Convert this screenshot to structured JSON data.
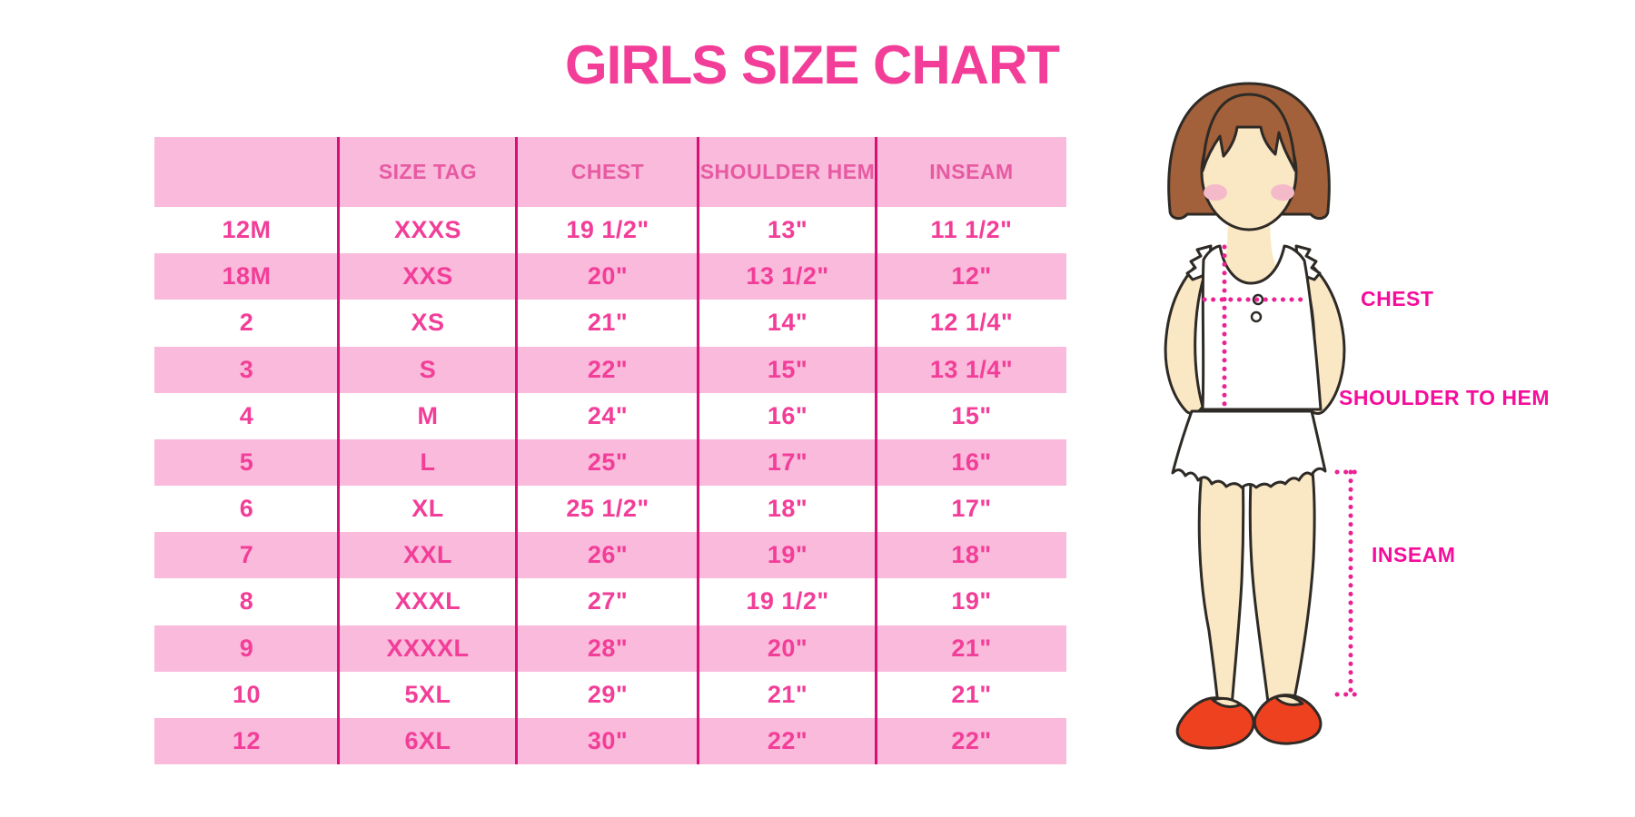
{
  "title": "GIRLS SIZE CHART",
  "chart_data": {
    "type": "table",
    "title": "GIRLS SIZE CHART",
    "columns": [
      "",
      "SIZE TAG",
      "CHEST",
      "SHOULDER HEM",
      "INSEAM"
    ],
    "rows": [
      [
        "12M",
        "XXXS",
        "19 1/2\"",
        "13\"",
        "11 1/2\""
      ],
      [
        "18M",
        "XXS",
        "20\"",
        "13 1/2\"",
        "12\""
      ],
      [
        "2",
        "XS",
        "21\"",
        "14\"",
        "12 1/4\""
      ],
      [
        "3",
        "S",
        "22\"",
        "15\"",
        "13 1/4\""
      ],
      [
        "4",
        "M",
        "24\"",
        "16\"",
        "15\""
      ],
      [
        "5",
        "L",
        "25\"",
        "17\"",
        "16\""
      ],
      [
        "6",
        "XL",
        "25 1/2\"",
        "18\"",
        "17\""
      ],
      [
        "7",
        "XXL",
        "26\"",
        "19\"",
        "18\""
      ],
      [
        "8",
        "XXXL",
        "27\"",
        "19 1/2\"",
        "19\""
      ],
      [
        "9",
        "XXXXL",
        "28\"",
        "20\"",
        "21\""
      ],
      [
        "10",
        "5XL",
        "29\"",
        "21\"",
        "21\""
      ],
      [
        "12",
        "6XL",
        "30\"",
        "22\"",
        "22\""
      ]
    ],
    "layout": "header row pink; data rows alternate white/pink starting with white"
  },
  "figure": {
    "description": "cartoon girl with bob haircut, white sleeveless ruffle top and red shoes, with dotted measurement lines",
    "labels": {
      "chest": "CHEST",
      "shoulder_to_hem": "SHOULDER TO HEM",
      "inseam": "INSEAM"
    }
  },
  "colors": {
    "title_text": "#F23E98",
    "cell_text": "#F23E98",
    "header_text": "#E75AA2",
    "row_pink": "#F9BADB",
    "column_divider": "#D90F78",
    "dotted_line": "#EB2194",
    "label_text": "#F50D9B",
    "hair_brown": "#A2613A",
    "skin": "#FAE7C4",
    "blush": "#F5BACA",
    "shoe_red": "#EE4120"
  }
}
